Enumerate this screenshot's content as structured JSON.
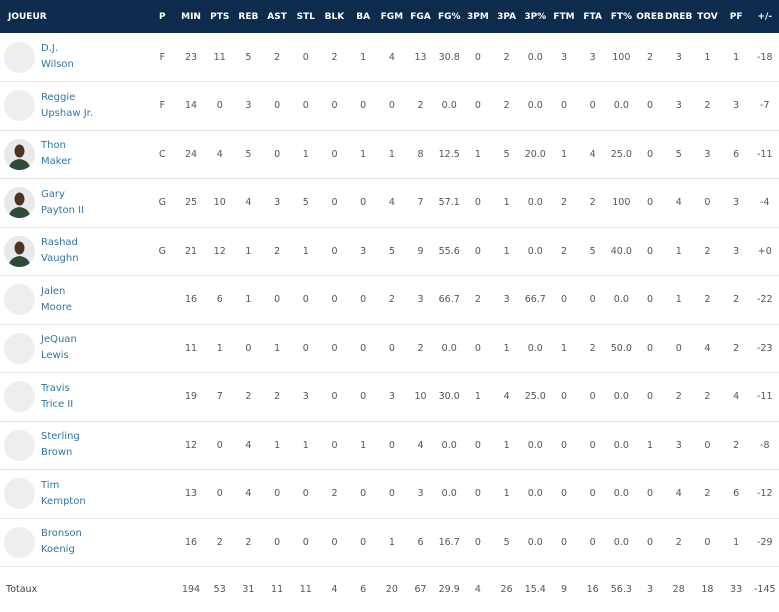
{
  "columns": [
    "JOUEUR",
    "P",
    "MIN",
    "PTS",
    "REB",
    "AST",
    "STL",
    "BLK",
    "BA",
    "FGM",
    "FGA",
    "FG%",
    "3PM",
    "3PA",
    "3P%",
    "FTM",
    "FTA",
    "FT%",
    "OREB",
    "DREB",
    "TOV",
    "PF",
    "+/-"
  ],
  "players": [
    {
      "first": "D.J.",
      "last": "Wilson",
      "photo": false,
      "stats": [
        "F",
        "23",
        "11",
        "5",
        "2",
        "0",
        "2",
        "1",
        "4",
        "13",
        "30.8",
        "0",
        "2",
        "0.0",
        "3",
        "3",
        "100",
        "2",
        "3",
        "1",
        "1",
        "-18"
      ]
    },
    {
      "first": "Reggie",
      "last": "Upshaw Jr.",
      "photo": false,
      "stats": [
        "F",
        "14",
        "0",
        "3",
        "0",
        "0",
        "0",
        "0",
        "0",
        "2",
        "0.0",
        "0",
        "2",
        "0.0",
        "0",
        "0",
        "0.0",
        "0",
        "3",
        "2",
        "3",
        "-7"
      ]
    },
    {
      "first": "Thon",
      "last": "Maker",
      "photo": true,
      "stats": [
        "C",
        "24",
        "4",
        "5",
        "0",
        "1",
        "0",
        "1",
        "1",
        "8",
        "12.5",
        "1",
        "5",
        "20.0",
        "1",
        "4",
        "25.0",
        "0",
        "5",
        "3",
        "6",
        "-11"
      ]
    },
    {
      "first": "Gary",
      "last": "Payton II",
      "photo": true,
      "stats": [
        "G",
        "25",
        "10",
        "4",
        "3",
        "5",
        "0",
        "0",
        "4",
        "7",
        "57.1",
        "0",
        "1",
        "0.0",
        "2",
        "2",
        "100",
        "0",
        "4",
        "0",
        "3",
        "-4"
      ]
    },
    {
      "first": "Rashad",
      "last": "Vaughn",
      "photo": true,
      "stats": [
        "G",
        "21",
        "12",
        "1",
        "2",
        "1",
        "0",
        "3",
        "5",
        "9",
        "55.6",
        "0",
        "1",
        "0.0",
        "2",
        "5",
        "40.0",
        "0",
        "1",
        "2",
        "3",
        "+0"
      ]
    },
    {
      "first": "Jalen",
      "last": "Moore",
      "photo": false,
      "stats": [
        "",
        "16",
        "6",
        "1",
        "0",
        "0",
        "0",
        "0",
        "2",
        "3",
        "66.7",
        "2",
        "3",
        "66.7",
        "0",
        "0",
        "0.0",
        "0",
        "1",
        "2",
        "2",
        "-22"
      ]
    },
    {
      "first": "JeQuan",
      "last": "Lewis",
      "photo": false,
      "stats": [
        "",
        "11",
        "1",
        "0",
        "1",
        "0",
        "0",
        "0",
        "0",
        "2",
        "0.0",
        "0",
        "1",
        "0.0",
        "1",
        "2",
        "50.0",
        "0",
        "0",
        "4",
        "2",
        "-23"
      ]
    },
    {
      "first": "Travis",
      "last": "Trice II",
      "photo": false,
      "stats": [
        "",
        "19",
        "7",
        "2",
        "2",
        "3",
        "0",
        "0",
        "3",
        "10",
        "30.0",
        "1",
        "4",
        "25.0",
        "0",
        "0",
        "0.0",
        "0",
        "2",
        "2",
        "4",
        "-11"
      ]
    },
    {
      "first": "Sterling",
      "last": "Brown",
      "photo": false,
      "stats": [
        "",
        "12",
        "0",
        "4",
        "1",
        "1",
        "0",
        "1",
        "0",
        "4",
        "0.0",
        "0",
        "1",
        "0.0",
        "0",
        "0",
        "0.0",
        "1",
        "3",
        "0",
        "2",
        "-8"
      ]
    },
    {
      "first": "Tim",
      "last": "Kempton",
      "photo": false,
      "stats": [
        "",
        "13",
        "0",
        "4",
        "0",
        "0",
        "2",
        "0",
        "0",
        "3",
        "0.0",
        "0",
        "1",
        "0.0",
        "0",
        "0",
        "0.0",
        "0",
        "4",
        "2",
        "6",
        "-12"
      ]
    },
    {
      "first": "Bronson",
      "last": "Koenig",
      "photo": false,
      "stats": [
        "",
        "16",
        "2",
        "2",
        "0",
        "0",
        "0",
        "0",
        "1",
        "6",
        "16.7",
        "0",
        "5",
        "0.0",
        "0",
        "0",
        "0.0",
        "0",
        "2",
        "0",
        "1",
        "-29"
      ]
    }
  ],
  "totals": {
    "label": "Totaux",
    "stats": [
      "",
      "194",
      "53",
      "31",
      "11",
      "11",
      "4",
      "6",
      "20",
      "67",
      "29.9",
      "4",
      "26",
      "15.4",
      "9",
      "16",
      "56.3",
      "3",
      "28",
      "18",
      "33",
      "-145"
    ]
  },
  "colors": {
    "header_bg": "#0d2b4c",
    "name_link": "#3276a3"
  }
}
